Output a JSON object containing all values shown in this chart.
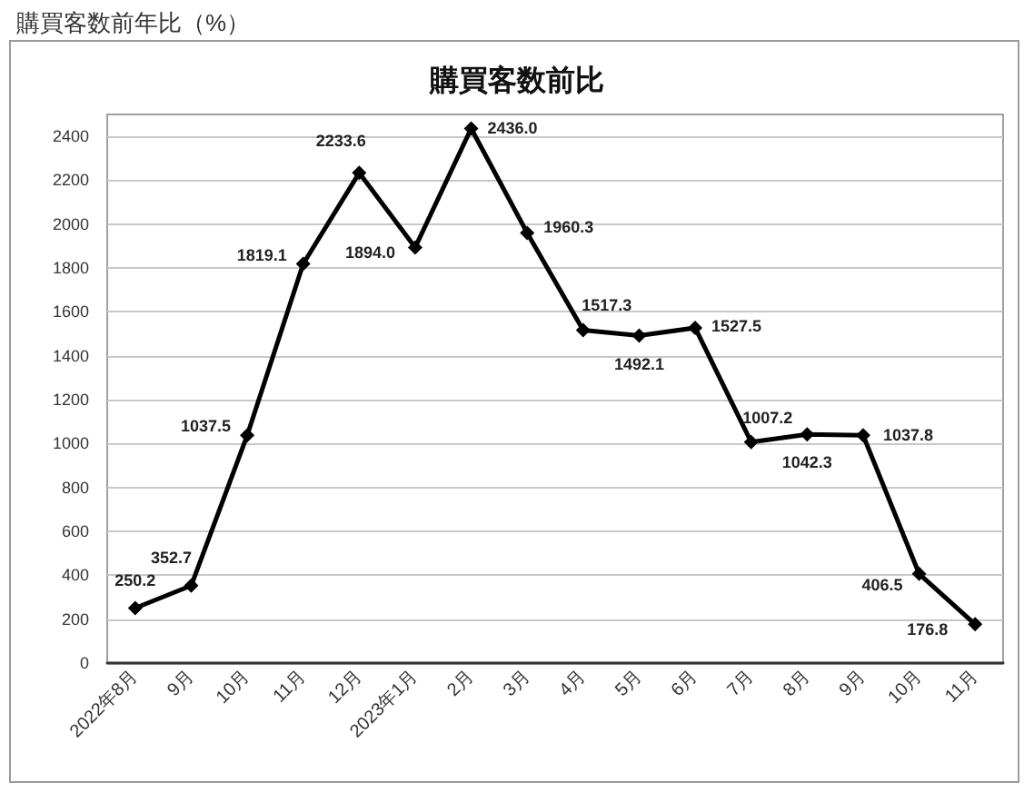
{
  "chart_data": {
    "type": "line",
    "title": "購買客数前年比（%）",
    "subtitle": "購買客数前比",
    "categories": [
      "2022年8月",
      "9月",
      "10月",
      "11月",
      "12月",
      "2023年1月",
      "2月",
      "3月",
      "4月",
      "5月",
      "6月",
      "7月",
      "8月",
      "9月",
      "10月",
      "11月"
    ],
    "values": [
      250.2,
      352.7,
      1037.5,
      1819.1,
      2233.6,
      1894.0,
      2436.0,
      1960.3,
      1517.3,
      1492.1,
      1527.5,
      1007.2,
      1042.3,
      1037.8,
      406.5,
      176.8
    ],
    "value_labels": [
      "250.2",
      "352.7",
      "1037.5",
      "1819.1",
      "2233.6",
      "1894.0",
      "2436.0",
      "1960.3",
      "1517.3",
      "1492.1",
      "1527.5",
      "1007.2",
      "1042.3",
      "1037.8",
      "406.5",
      "176.8"
    ],
    "color": "#000000",
    "ylim": [
      0,
      2500
    ],
    "yticks": [
      0,
      200,
      400,
      600,
      800,
      1000,
      1200,
      1400,
      1600,
      1800,
      2000,
      2200,
      2400
    ],
    "grid": "y",
    "marker": "diamond",
    "line_style": "solid"
  }
}
